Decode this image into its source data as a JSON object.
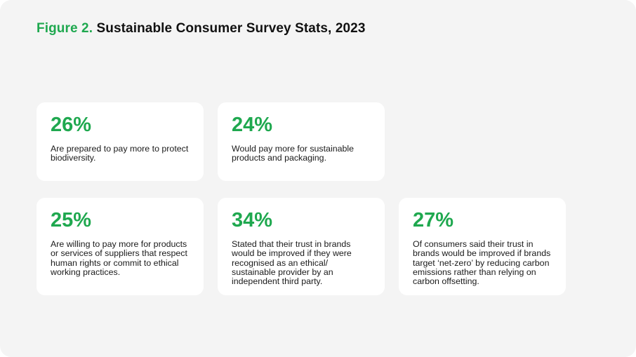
{
  "header": {
    "figure_label": "Figure 2.",
    "title": "Sustainable Consumer Survey Stats, 2023"
  },
  "colors": {
    "accent": "#1fa84f",
    "background": "#f4f4f4",
    "card": "#ffffff",
    "text": "#1a1a1a"
  },
  "chart_data": {
    "type": "table",
    "title": "Figure 2. Sustainable Consumer Survey Stats, 2023",
    "stats": [
      {
        "value": "26%",
        "description": "Are prepared to pay more to protect biodiversity."
      },
      {
        "value": "24%",
        "description": "Would pay more for sustainable products and packaging."
      },
      {
        "value": "25%",
        "description": "Are willing to pay more for products or services of suppliers that respect human rights or commit to ethical working practices."
      },
      {
        "value": "34%",
        "description": "Stated that their trust in brands would be improved if they were recognised as an ethical/ sustainable provider by an independent third party."
      },
      {
        "value": "27%",
        "description": "Of consumers said their trust in brands would be improved if brands target ‘net-zero’ by reducing carbon emissions rather than relying on carbon offsetting."
      }
    ]
  }
}
